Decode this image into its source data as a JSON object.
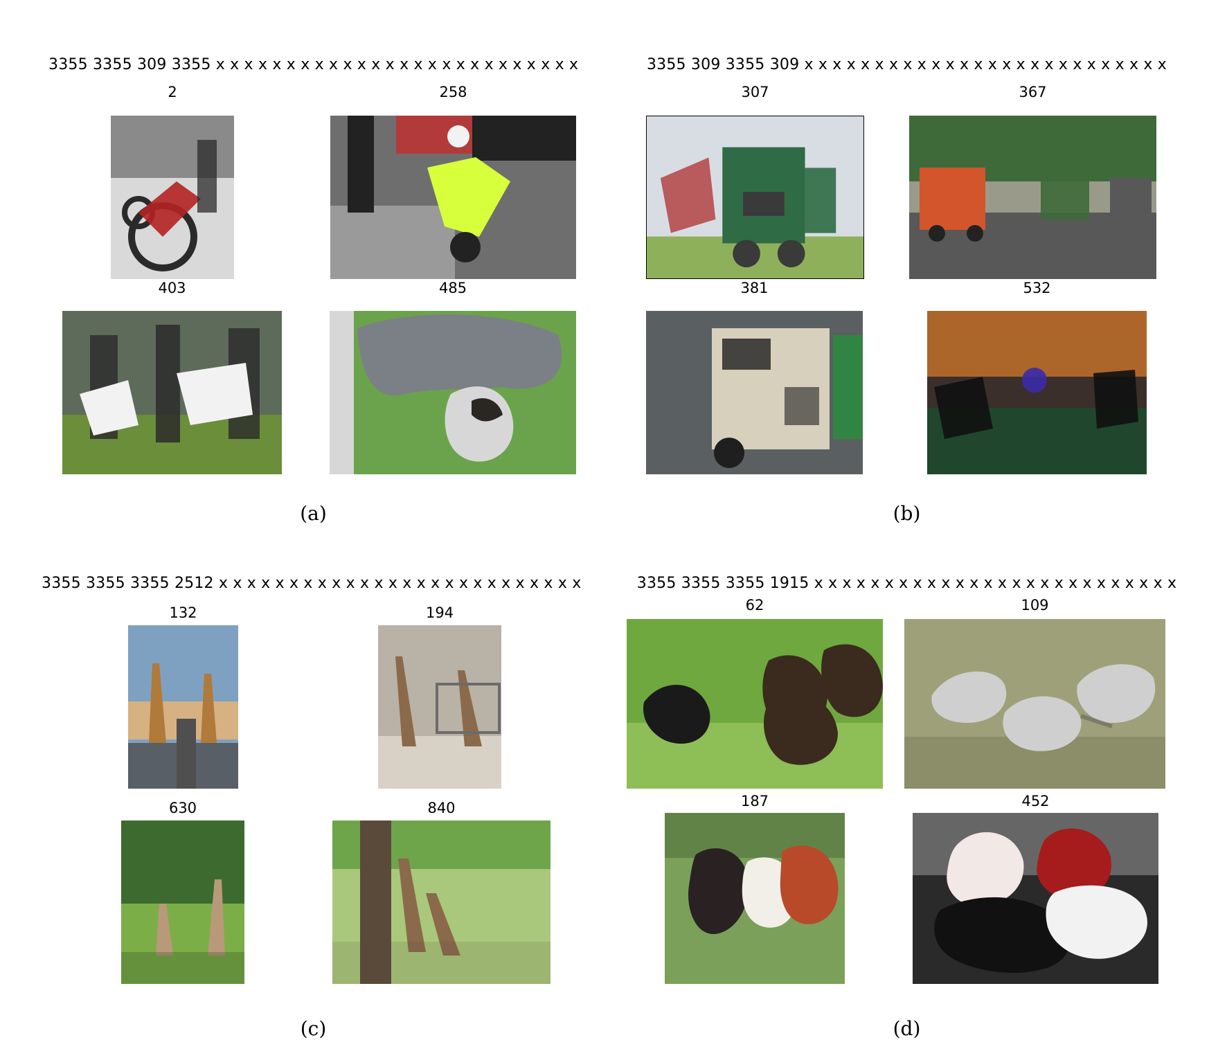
{
  "panels": [
    {
      "id": "a",
      "title": "3355 3355 309 3355 x x x x x x x x x x x x x x x x x x x x x x x x x x",
      "caption": "(a)",
      "tiles": [
        {
          "label": "2",
          "subject": "motorcycle-photo",
          "colors": [
            "#d9d9d9",
            "#2a2a2a",
            "#b22222",
            "#8a8a8a"
          ]
        },
        {
          "label": "258",
          "subject": "police-motorcycle-photo",
          "colors": [
            "#6e6e6e",
            "#222222",
            "#d7ff3c",
            "#9a9a9a"
          ]
        },
        {
          "label": "403",
          "subject": "motorcycle-show-photo",
          "colors": [
            "#6b8e3a",
            "#2b2b2b",
            "#f2f2f2",
            "#5f6b5a"
          ]
        },
        {
          "label": "485",
          "subject": "dogs-photo",
          "colors": [
            "#6aa34b",
            "#7b7f86",
            "#2a2622",
            "#d7d7d7"
          ]
        }
      ]
    },
    {
      "id": "b",
      "title": "3355 309 3355 309 x x x x x x x x x x x x x x x x x x x x x x x x x x",
      "caption": "(b)",
      "tiles": [
        {
          "label": "307",
          "subject": "green-truck-photo",
          "colors": [
            "#d8dde3",
            "#2f6b45",
            "#8fb05a",
            "#3a3a3a"
          ]
        },
        {
          "label": "367",
          "subject": "orange-truck-photo",
          "colors": [
            "#9a9a8a",
            "#d2552b",
            "#3e6a3a",
            "#585858"
          ]
        },
        {
          "label": "381",
          "subject": "white-truck-photo",
          "colors": [
            "#5a5f62",
            "#d7d0bd",
            "#1f1f1f",
            "#2c8a3f"
          ]
        },
        {
          "label": "532",
          "subject": "night-motorcycles-photo",
          "colors": [
            "#3a2f2a",
            "#c2702a",
            "#3b2ba8",
            "#1e4a2e"
          ]
        }
      ]
    },
    {
      "id": "c",
      "title": "3355 3355 3355 2512 x x x x x x x x x x x x x x x x x x x x x x x x x x",
      "caption": "(c)",
      "tiles": [
        {
          "label": "132",
          "subject": "giraffes-sunset-photo",
          "colors": [
            "#7ea1c1",
            "#b07a3a",
            "#e0b27a",
            "#4f4f4f"
          ]
        },
        {
          "label": "194",
          "subject": "giraffes-enclosure-photo",
          "colors": [
            "#b9b2a6",
            "#8a6a4a",
            "#d8d2c6",
            "#6b6b6b"
          ]
        },
        {
          "label": "630",
          "subject": "giraffes-trees-photo",
          "colors": [
            "#3d6a2f",
            "#7cae47",
            "#b89a7a",
            "#203a1a"
          ]
        },
        {
          "label": "840",
          "subject": "giraffes-field-photo",
          "colors": [
            "#6ea44a",
            "#a9c87b",
            "#8a6a4a",
            "#5a4a3a"
          ]
        }
      ]
    },
    {
      "id": "d",
      "title": "3355 3355 3355 1915 x x x x x x x x x x x x x x x x x x x x x x x x x x",
      "caption": "(d)",
      "tiles": [
        {
          "label": "62",
          "subject": "birds-grass-photo",
          "colors": [
            "#6fa83f",
            "#3b2b1e",
            "#a7d06a",
            "#1a1a1a"
          ]
        },
        {
          "label": "109",
          "subject": "bighorn-sheep-photo",
          "colors": [
            "#9ea07a",
            "#cfcfcf",
            "#6b6a4a",
            "#5a5a5a"
          ]
        },
        {
          "label": "187",
          "subject": "cows-pasture-photo",
          "colors": [
            "#7ba05a",
            "#2a2222",
            "#b84a2a",
            "#f2efe8"
          ]
        },
        {
          "label": "452",
          "subject": "parade-horses-photo",
          "colors": [
            "#2a2a2a",
            "#f2e8e6",
            "#a61b1b",
            "#d7d7d7"
          ]
        }
      ]
    }
  ]
}
